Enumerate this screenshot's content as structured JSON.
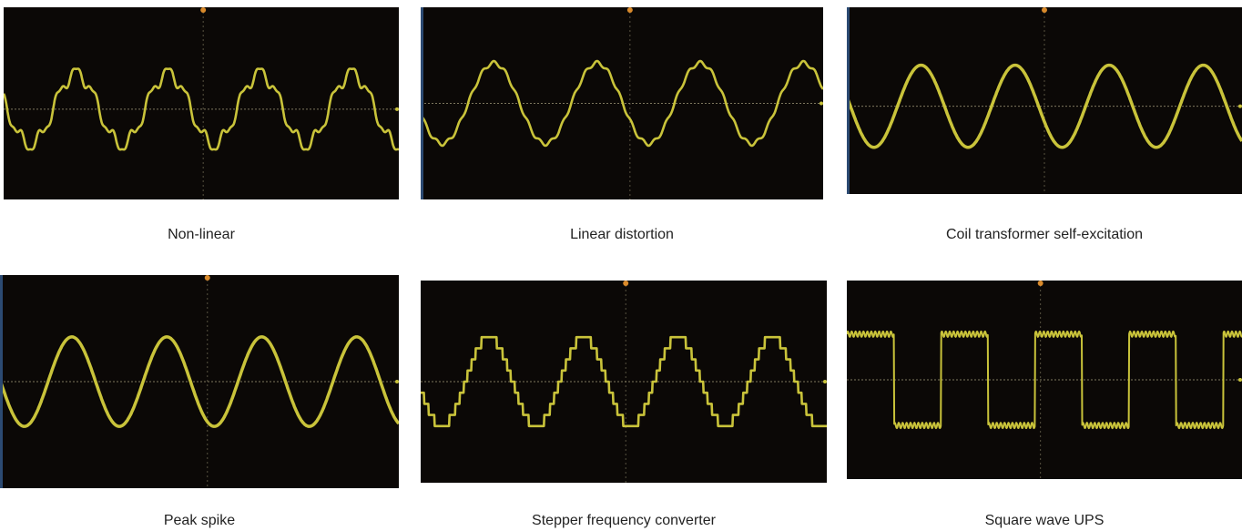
{
  "colors": {
    "trace": "#c9c33a",
    "screen": "#0b0806",
    "grid": "#8a8468",
    "marker": "#d98a2b"
  },
  "panels": [
    {
      "caption": "Non-linear",
      "waveform": "sine-with-harmonic-ripple"
    },
    {
      "caption": "Linear distortion",
      "waveform": "sine-with-small-ripple"
    },
    {
      "caption": "Coil transformer self-excitation",
      "waveform": "thick-sine"
    },
    {
      "caption": "Peak spike",
      "waveform": "thick-sine"
    },
    {
      "caption": "Stepper frequency converter",
      "waveform": "stepped-sine"
    },
    {
      "caption": "Square wave UPS",
      "waveform": "square-with-ripple"
    }
  ]
}
